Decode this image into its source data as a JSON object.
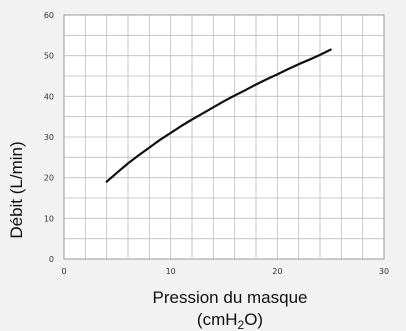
{
  "chart_data": {
    "type": "line",
    "title": "",
    "xlabel_line1": "Pression du masque",
    "xlabel_line2_prefix": "(cmH",
    "xlabel_line2_sub": "2",
    "xlabel_line2_suffix": "O)",
    "ylabel": "Débit  (L/min)",
    "xlim": [
      0,
      30
    ],
    "ylim": [
      0,
      60
    ],
    "xticks": [
      0,
      10,
      20,
      30
    ],
    "yticks": [
      0,
      10,
      20,
      30,
      40,
      50,
      60
    ],
    "x_minor_step": 2,
    "y_minor_step": 5,
    "grid": true,
    "series": [
      {
        "x": [
          4,
          5,
          6,
          7,
          8,
          9,
          10,
          11,
          12,
          13,
          14,
          15,
          16,
          17,
          18,
          19,
          20,
          21,
          22,
          23,
          24,
          25
        ],
        "y": [
          19,
          21.3,
          23.5,
          25.5,
          27.4,
          29.3,
          31,
          32.7,
          34.3,
          35.8,
          37.3,
          38.8,
          40.2,
          41.5,
          42.9,
          44.2,
          45.4,
          46.7,
          47.9,
          49.0,
          50.2,
          51.5
        ],
        "color": "#111111"
      }
    ]
  }
}
